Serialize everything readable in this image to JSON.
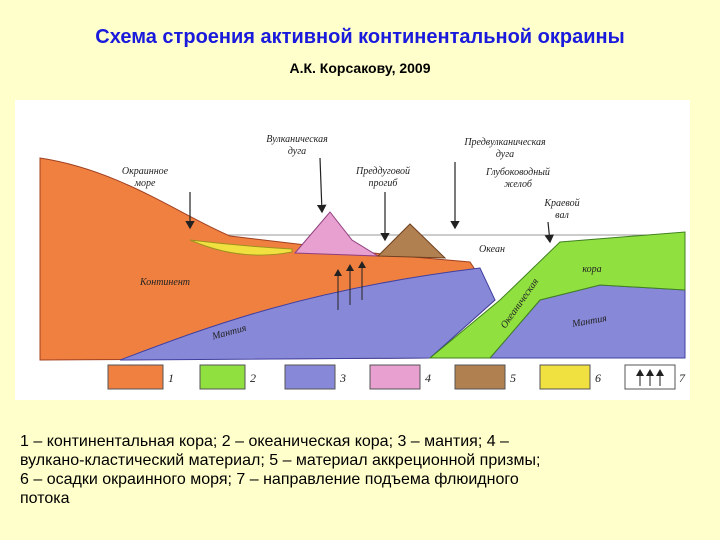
{
  "header": {
    "title": "Схема строения активной континентальной окраины",
    "subtitle": "А.К. Корсакову, 2009"
  },
  "diagram": {
    "labels": [
      [
        "Окраинное",
        "море"
      ],
      [
        "Вулканическая",
        "дуга"
      ],
      [
        "Преддуговой",
        "прогиб"
      ],
      [
        "Предвулканическая",
        "дуга"
      ],
      [
        "Глубоководный",
        "желоб"
      ],
      [
        "Краевой",
        "вал"
      ],
      [
        "Океан"
      ],
      [
        "Континент"
      ],
      [
        "Мантия"
      ],
      [
        "Мантия"
      ],
      [
        "Океаническая"
      ],
      [
        "кора"
      ]
    ],
    "legend": [
      "1",
      "2",
      "3",
      "4",
      "5",
      "6",
      "7"
    ]
  },
  "caption": [
    "1 – континентальная кора; 2 – океаническая кора; 3 – мантия; 4 –",
    "вулкано-кластический материал; 5 – материал аккреционной призмы;",
    "6 – осадки окраинного моря; 7 – направление подъема флюидного",
    "потока"
  ]
}
